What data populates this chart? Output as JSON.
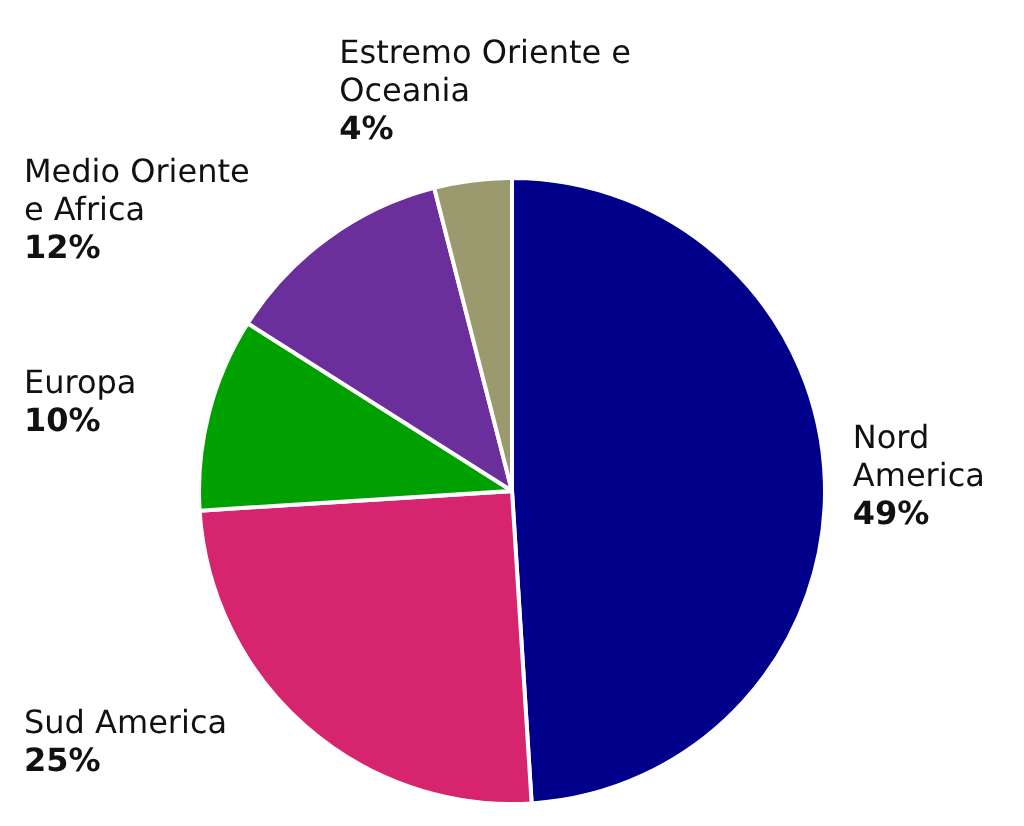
{
  "chart_data": {
    "type": "pie",
    "categories": [
      "Nord America",
      "Sud America",
      "Europa",
      "Medio Oriente e Africa",
      "Estremo Oriente e Oceania"
    ],
    "values": [
      49,
      25,
      10,
      12,
      4
    ],
    "colors": [
      "#00008b",
      "#d6246e",
      "#00a000",
      "#6a2f9a",
      "#9a9a6e"
    ],
    "value_labels": [
      "49%",
      "25%",
      "10%",
      "12%",
      "4%"
    ],
    "legend": false
  }
}
